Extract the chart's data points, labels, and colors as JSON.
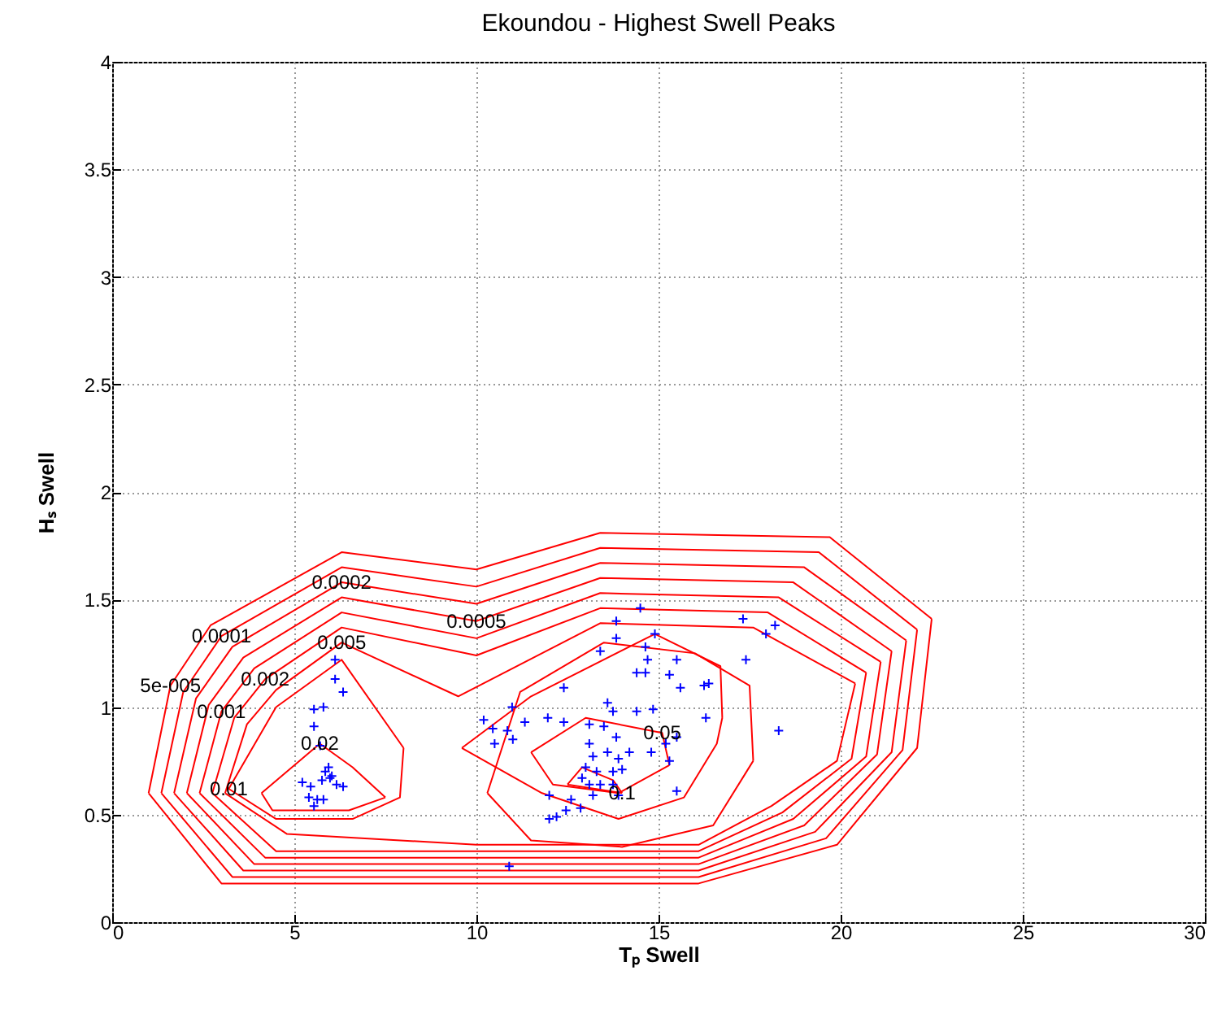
{
  "chart_data": {
    "type": "line",
    "title": "Ekoundou - Highest Swell Peaks",
    "xlabel": "Tₚ Swell",
    "ylabel": "Hₛ Swell",
    "xlim": [
      0,
      30
    ],
    "ylim": [
      0,
      4
    ],
    "xticks": [
      0,
      5,
      10,
      15,
      20,
      25,
      30
    ],
    "yticks": [
      0,
      0.5,
      1,
      1.5,
      2,
      2.5,
      3,
      3.5,
      4
    ],
    "grid": true,
    "series": [
      {
        "name": "5e-005",
        "color": "#ff0000",
        "x": [
          1,
          1.6,
          2.7,
          6.3,
          10,
          13.4,
          19.7,
          22.5,
          null,
          1,
          3,
          10,
          16.1,
          19.9,
          22.1,
          22.5
        ],
        "values": [
          0.6,
          1.1,
          1.38,
          1.72,
          1.64,
          1.81,
          1.79,
          1.41,
          null,
          0.6,
          0.18,
          0.18,
          0.18,
          0.36,
          0.81,
          1.41
        ]
      },
      {
        "name": "0.0001",
        "color": "#ff0000",
        "x": [
          1.35,
          1.95,
          3.0,
          6.3,
          10,
          13.4,
          19.4,
          22.1,
          null,
          1.35,
          3.3,
          10,
          16.1,
          19.6,
          21.7,
          22.1
        ],
        "values": [
          0.6,
          1.07,
          1.33,
          1.65,
          1.56,
          1.74,
          1.72,
          1.36,
          null,
          0.6,
          0.21,
          0.21,
          0.21,
          0.39,
          0.8,
          1.36
        ]
      },
      {
        "name": "0.0002",
        "color": "#ff0000",
        "x": [
          1.7,
          2.3,
          3.3,
          6.3,
          10,
          13.4,
          19.0,
          21.8,
          null,
          1.7,
          3.6,
          10,
          16.1,
          19.3,
          21.4,
          21.8
        ],
        "values": [
          0.6,
          1.04,
          1.28,
          1.58,
          1.48,
          1.67,
          1.65,
          1.31,
          null,
          0.6,
          0.24,
          0.24,
          0.24,
          0.42,
          0.79,
          1.31
        ]
      },
      {
        "name": "0.0005",
        "color": "#ff0000",
        "x": [
          2.05,
          2.65,
          3.6,
          6.3,
          10,
          13.4,
          18.7,
          21.4,
          null,
          2.05,
          3.9,
          10,
          16.1,
          19.0,
          21.0,
          21.4
        ],
        "values": [
          0.6,
          1.01,
          1.23,
          1.51,
          1.4,
          1.6,
          1.58,
          1.26,
          null,
          0.6,
          0.27,
          0.27,
          0.27,
          0.45,
          0.78,
          1.26
        ]
      },
      {
        "name": "0.001",
        "color": "#ff0000",
        "x": [
          2.4,
          3.0,
          3.9,
          6.3,
          10,
          13.4,
          18.3,
          21.1,
          null,
          2.4,
          4.2,
          10,
          16.1,
          18.7,
          20.7,
          21.1
        ],
        "values": [
          0.6,
          0.98,
          1.18,
          1.44,
          1.32,
          1.53,
          1.51,
          1.21,
          null,
          0.6,
          0.3,
          0.3,
          0.3,
          0.48,
          0.77,
          1.21
        ]
      },
      {
        "name": "0.002",
        "color": "#ff0000",
        "x": [
          2.75,
          3.35,
          4.2,
          6.3,
          10,
          13.4,
          18.0,
          20.7,
          null,
          2.75,
          4.5,
          10,
          16.1,
          18.4,
          20.3,
          20.7
        ],
        "values": [
          0.6,
          0.95,
          1.13,
          1.37,
          1.24,
          1.46,
          1.44,
          1.16,
          null,
          0.6,
          0.33,
          0.33,
          0.33,
          0.51,
          0.76,
          1.16
        ]
      },
      {
        "name": "0.005",
        "color": "#ff0000",
        "x": [
          3.1,
          3.7,
          4.5,
          6.3,
          9.5,
          13.4,
          17.6,
          20.4,
          null,
          3.1,
          4.8,
          10,
          16.1,
          18.1,
          19.9,
          20.4
        ],
        "values": [
          0.6,
          0.92,
          1.08,
          1.3,
          1.05,
          1.39,
          1.37,
          1.11,
          null,
          0.6,
          0.41,
          0.36,
          0.36,
          0.54,
          0.75,
          1.11
        ]
      },
      {
        "name": "0.01",
        "color": "#ff0000",
        "x": [
          3.2,
          4.5,
          6.3,
          8.0,
          null,
          3.2,
          4.5,
          6.6,
          7.9,
          8.0,
          null,
          10.3,
          11.2,
          13.5,
          16,
          17.5,
          17.6,
          null,
          10.3,
          11.5,
          14,
          16.5,
          17.6
        ],
        "values": [
          0.62,
          1.0,
          1.22,
          0.81,
          null,
          0.62,
          0.48,
          0.48,
          0.58,
          0.81,
          null,
          0.6,
          1.07,
          1.3,
          1.25,
          1.1,
          0.75,
          null,
          0.6,
          0.38,
          0.35,
          0.45,
          0.75
        ]
      },
      {
        "name": "0.02",
        "color": "#ff0000",
        "x": [
          4.1,
          5.7,
          6.6,
          7.5,
          null,
          4.1,
          4.4,
          6.5,
          7.5,
          null,
          9.6,
          11.5,
          14.9,
          16.7,
          16.75,
          null,
          9.6,
          11.8,
          13.9,
          15.7,
          16.6,
          16.75
        ],
        "values": [
          0.6,
          0.83,
          0.72,
          0.58,
          null,
          0.6,
          0.52,
          0.52,
          0.58,
          null,
          0.81,
          1.05,
          1.34,
          1.19,
          0.95,
          null,
          0.81,
          0.6,
          0.48,
          0.58,
          0.83,
          0.95
        ]
      },
      {
        "name": "0.05",
        "color": "#ff0000",
        "x": [
          11.5,
          13.0,
          15.1,
          15.3,
          null,
          11.5,
          12.1,
          13.9,
          15.3
        ],
        "values": [
          0.79,
          0.95,
          0.88,
          0.73,
          null,
          0.79,
          0.64,
          0.6,
          0.73
        ]
      },
      {
        "name": "0.1",
        "color": "#ff0000",
        "x": [
          12.5,
          12.9,
          13.75,
          14.0,
          null,
          12.5,
          14.0
        ],
        "values": [
          0.64,
          0.72,
          0.66,
          0.6,
          null,
          0.64,
          0.6
        ]
      },
      {
        "type": "scatter",
        "color": "#0000ff",
        "marker": "cross",
        "x": [
          6.12,
          6.12,
          6.34,
          5.54,
          5.8,
          5.54,
          5.71,
          5.94,
          5.85,
          6.03,
          5.76,
          5.22,
          5.45,
          6.16,
          6.34,
          5.4,
          5.63,
          5.8,
          5.54,
          5.98,
          14.5,
          13.84,
          17.32,
          17.95,
          18.2,
          14.9,
          13.84,
          13.4,
          14.64,
          14.7,
          15.5,
          17.4,
          14.4,
          14.64,
          15.3,
          15.6,
          16.25,
          16.38,
          12.4,
          13.6,
          13.75,
          14.4,
          14.85,
          16.3,
          10.98,
          10.2,
          11.33,
          11.96,
          12.4,
          10.45,
          10.85,
          10.5,
          11.0,
          13.1,
          13.5,
          13.84,
          15.5,
          15.2,
          13.1,
          14.2,
          14.8,
          13.6,
          15.3,
          18.3,
          13.2,
          13.9,
          13.0,
          13.3,
          13.75,
          14.0,
          12.9,
          13.4,
          13.75,
          13.1,
          13.9,
          12.0,
          12.6,
          12.86,
          12.46,
          12.2,
          12.0,
          15.5,
          10.9,
          13.2
        ],
        "values": [
          1.22,
          1.13,
          1.07,
          0.99,
          1.0,
          0.91,
          0.82,
          0.72,
          0.7,
          0.68,
          0.66,
          0.65,
          0.63,
          0.64,
          0.63,
          0.58,
          0.57,
          0.57,
          0.54,
          0.67,
          1.46,
          1.4,
          1.41,
          1.34,
          1.38,
          1.34,
          1.32,
          1.26,
          1.28,
          1.22,
          1.22,
          1.22,
          1.16,
          1.16,
          1.15,
          1.09,
          1.1,
          1.11,
          1.09,
          1.02,
          0.98,
          0.98,
          0.99,
          0.95,
          1.0,
          0.94,
          0.93,
          0.95,
          0.93,
          0.9,
          0.89,
          0.83,
          0.85,
          0.92,
          0.91,
          0.86,
          0.86,
          0.83,
          0.83,
          0.79,
          0.79,
          0.79,
          0.75,
          0.89,
          0.77,
          0.76,
          0.72,
          0.7,
          0.7,
          0.71,
          0.67,
          0.64,
          0.64,
          0.64,
          0.59,
          0.59,
          0.57,
          0.53,
          0.52,
          0.49,
          0.48,
          0.61,
          0.26,
          0.59
        ]
      }
    ]
  }
}
